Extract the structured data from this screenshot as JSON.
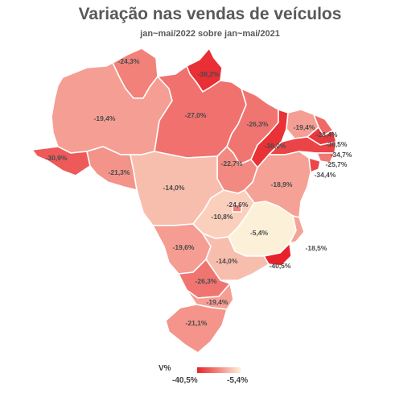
{
  "title": "Variação nas vendas de veículos",
  "subtitle": "jan~mai/2022 sobre jan~mai/2021",
  "colors": {
    "min": "#e8222a",
    "max": "#fdf0d8"
  },
  "legend": {
    "title": "V%",
    "min_label": "-40,5%",
    "max_label": "-5,4%"
  },
  "scale": {
    "min": -40.5,
    "max": -5.4
  },
  "states": [
    {
      "code": "RR",
      "value": -24.3,
      "label": "-24,3%"
    },
    {
      "code": "AP",
      "value": -38.2,
      "label": "-38,2%"
    },
    {
      "code": "AM",
      "value": -19.4,
      "label": "-19,4%"
    },
    {
      "code": "PA",
      "value": -27.0,
      "label": "-27,0%"
    },
    {
      "code": "MA",
      "value": -26.3,
      "label": "-26,3%"
    },
    {
      "code": "CE",
      "value": -19.4,
      "label": "-19,4%"
    },
    {
      "code": "RN",
      "value": -28.4,
      "label": "-28,4%"
    },
    {
      "code": "PB",
      "value": -36.5,
      "label": "-36,5%"
    },
    {
      "code": "PE",
      "value": -34.7,
      "label": "-34,7%"
    },
    {
      "code": "AL",
      "value": -25.7,
      "label": "-25,7%"
    },
    {
      "code": "SE",
      "value": -34.4,
      "label": "-34,4%"
    },
    {
      "code": "PI",
      "value": -38.0,
      "label": "-38,0%"
    },
    {
      "code": "AC",
      "value": -30.9,
      "label": "-30,9%"
    },
    {
      "code": "RO",
      "value": -21.3,
      "label": "-21,3%"
    },
    {
      "code": "TO",
      "value": -22.7,
      "label": "-22,7%"
    },
    {
      "code": "BA",
      "value": -18.9,
      "label": "-18,9%"
    },
    {
      "code": "MT",
      "value": -14.0,
      "label": "-14,0%"
    },
    {
      "code": "DF",
      "value": -24.6,
      "label": "-24,6%"
    },
    {
      "code": "GO",
      "value": -10.8,
      "label": "-10,8%"
    },
    {
      "code": "MG",
      "value": -5.4,
      "label": "-5,4%"
    },
    {
      "code": "ES",
      "value": -18.5,
      "label": "-18,5%"
    },
    {
      "code": "RJ",
      "value": -40.5,
      "label": "-40,5%"
    },
    {
      "code": "MS",
      "value": -19.6,
      "label": "-19,6%"
    },
    {
      "code": "SP",
      "value": -14.0,
      "label": "-14,0%"
    },
    {
      "code": "PR",
      "value": -26.3,
      "label": "-26,3%"
    },
    {
      "code": "SC",
      "value": -19.4,
      "label": "-19,4%"
    },
    {
      "code": "RS",
      "value": -21.1,
      "label": "-21,1%"
    }
  ]
}
